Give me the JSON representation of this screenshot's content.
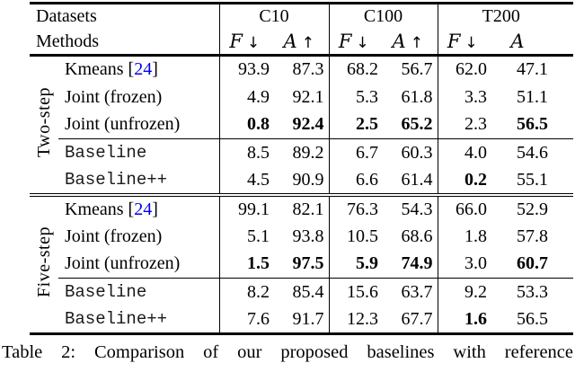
{
  "page": {
    "background": "#ffffff",
    "text_color": "#000000",
    "cite_color": "#0000EE"
  },
  "table": {
    "header": {
      "row1_label": "Datasets",
      "row2_label": "Methods",
      "datasets": [
        "C10",
        "C100",
        "T200"
      ],
      "f_metric": "F",
      "f_arrow": "↓",
      "a_metric": "A",
      "a_arrow": "↑"
    },
    "sections": [
      {
        "label": "Two-step",
        "rows": [
          {
            "method": "Kmeans [",
            "cite": "24",
            "method_suffix": "]",
            "values": [
              "93.9",
              "87.3",
              "68.2",
              "56.7",
              "62.0",
              "47.1"
            ]
          },
          {
            "method": "Joint (frozen)",
            "values": [
              "4.9",
              "92.1",
              "5.3",
              "61.8",
              "3.3",
              "51.1"
            ]
          },
          {
            "method": "Joint (unfrozen)",
            "values": [
              "0.8",
              "92.4",
              "2.5",
              "65.2",
              "2.3",
              "56.5"
            ],
            "bold": [
              true,
              true,
              true,
              true,
              false,
              true
            ]
          },
          {
            "method": "Baseline",
            "mono": true,
            "rule_above": true,
            "values": [
              "8.5",
              "89.2",
              "6.7",
              "60.3",
              "4.0",
              "54.6"
            ]
          },
          {
            "method": "Baseline++",
            "mono": true,
            "values": [
              "4.5",
              "90.9",
              "6.6",
              "61.4",
              "0.2",
              "55.1"
            ],
            "bold": [
              false,
              false,
              false,
              false,
              true,
              false
            ]
          }
        ]
      },
      {
        "label": "Five-step",
        "rows": [
          {
            "method": "Kmeans [",
            "cite": "24",
            "method_suffix": "]",
            "values": [
              "99.1",
              "82.1",
              "76.3",
              "54.3",
              "66.0",
              "52.9"
            ]
          },
          {
            "method": "Joint (frozen)",
            "values": [
              "5.1",
              "93.8",
              "10.5",
              "68.6",
              "1.8",
              "57.8"
            ]
          },
          {
            "method": "Joint (unfrozen)",
            "values": [
              "1.5",
              "97.5",
              "5.9",
              "74.9",
              "3.0",
              "60.7"
            ],
            "bold": [
              true,
              true,
              true,
              true,
              false,
              true
            ]
          },
          {
            "method": "Baseline",
            "mono": true,
            "rule_above": true,
            "values": [
              "8.2",
              "85.4",
              "15.6",
              "63.7",
              "9.2",
              "53.3"
            ]
          },
          {
            "method": "Baseline++",
            "mono": true,
            "values": [
              "7.6",
              "91.7",
              "12.3",
              "67.7",
              "1.6",
              "56.5"
            ],
            "bold": [
              false,
              false,
              false,
              false,
              true,
              false
            ]
          }
        ]
      }
    ]
  },
  "caption": {
    "text": "Table 2: Comparison of our proposed baselines with reference"
  }
}
